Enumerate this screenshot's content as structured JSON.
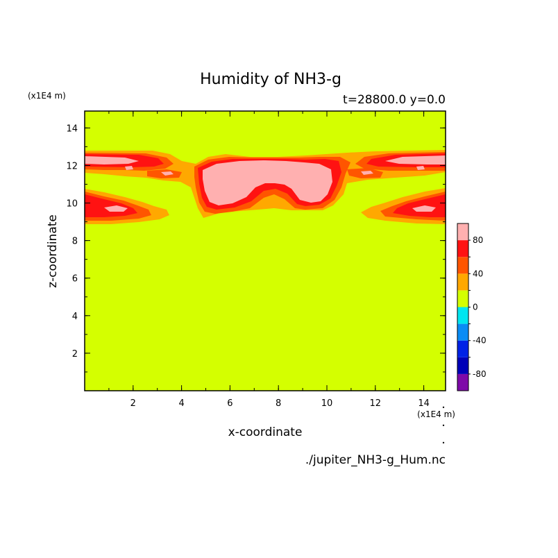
{
  "chart_data": {
    "type": "heatmap",
    "title": "Humidity of NH3-g",
    "subtitle": "t=28800.0 y=0.0",
    "xlabel": "x-coordinate",
    "ylabel": "z-coordinate",
    "x_unit": "(x1E4 m)",
    "y_unit": "(x1E4 m)",
    "source_file": "./jupiter_NH3-g_Hum.nc",
    "xlim": [
      0,
      14.9
    ],
    "ylim": [
      0,
      14.9
    ],
    "x_ticks": [
      2,
      4,
      6,
      8,
      10,
      12,
      14
    ],
    "y_ticks": [
      2,
      4,
      6,
      8,
      10,
      12,
      14
    ],
    "background_level": "0 to 20",
    "colorbar": {
      "range": [
        -100,
        100
      ],
      "step": 20,
      "tick_values": [
        -80,
        -40,
        0,
        40,
        80
      ],
      "tick_labels": [
        "-80",
        "-40",
        "0",
        "40",
        "80"
      ],
      "colors": [
        "#7e0aa8",
        "#0000b8",
        "#0022e6",
        "#0a8cf5",
        "#00e6f0",
        "#d4ff00",
        "#ffa800",
        "#ff5500",
        "#ff1212",
        "#ffb0b0"
      ]
    },
    "contour_regions": [
      {
        "name": "upper-left-band",
        "levels": "20 to 100",
        "x_range": [
          0,
          4.5
        ],
        "z_range": [
          11.2,
          12.9
        ]
      },
      {
        "name": "upper-right-band",
        "levels": "20 to 100",
        "x_range": [
          10.5,
          14.9
        ],
        "z_range": [
          11.2,
          12.9
        ]
      },
      {
        "name": "central-plume",
        "levels": "20 to 100",
        "x_range": [
          4.7,
          10.5
        ],
        "z_range": [
          9.2,
          12.8
        ]
      },
      {
        "name": "left-lower-lobe",
        "levels": "20 to 100",
        "x_range": [
          0,
          3.7
        ],
        "z_range": [
          9.0,
          10.7
        ]
      },
      {
        "name": "right-lower-lobe",
        "levels": "20 to 100",
        "x_range": [
          11.2,
          14.9
        ],
        "z_range": [
          9.0,
          10.7
        ]
      }
    ]
  }
}
